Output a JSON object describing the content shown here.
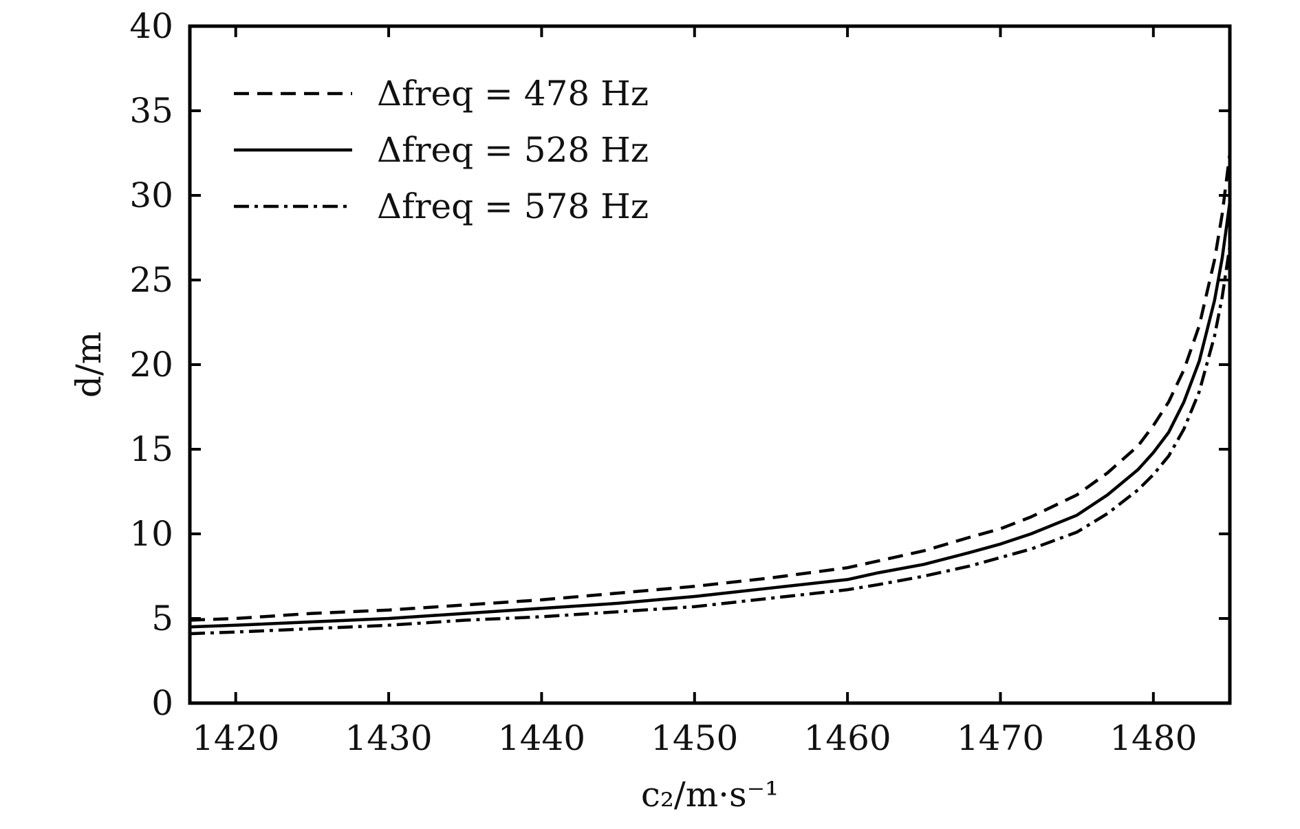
{
  "chart_data": {
    "type": "line",
    "title": "",
    "xlabel": "c₂/m·s⁻¹",
    "ylabel": "d/m",
    "xlim": [
      1417,
      1485
    ],
    "ylim": [
      0,
      40
    ],
    "xticks": [
      1420,
      1430,
      1440,
      1450,
      1460,
      1470,
      1480
    ],
    "yticks": [
      0,
      5,
      10,
      15,
      20,
      25,
      30,
      35,
      40
    ],
    "grid": false,
    "legend": "top-left",
    "series": [
      {
        "name": "Δfreq = 478 Hz",
        "dash": "dashed",
        "x": [
          1417,
          1420,
          1425,
          1430,
          1435,
          1440,
          1445,
          1450,
          1455,
          1460,
          1462,
          1465,
          1468,
          1470,
          1472,
          1475,
          1477,
          1479,
          1480,
          1481,
          1482,
          1483,
          1484,
          1484.5,
          1485
        ],
        "y": [
          4.9,
          5.0,
          5.3,
          5.5,
          5.8,
          6.1,
          6.5,
          6.9,
          7.4,
          8.0,
          8.4,
          9.0,
          9.8,
          10.3,
          11.0,
          12.3,
          13.6,
          15.2,
          16.4,
          17.8,
          19.7,
          22.3,
          26.2,
          28.9,
          32.5
        ]
      },
      {
        "name": "Δfreq = 528 Hz",
        "dash": "solid",
        "x": [
          1417,
          1420,
          1425,
          1430,
          1435,
          1440,
          1445,
          1450,
          1455,
          1460,
          1462,
          1465,
          1468,
          1470,
          1472,
          1475,
          1477,
          1479,
          1480,
          1481,
          1482,
          1483,
          1484,
          1484.5,
          1485
        ],
        "y": [
          4.5,
          4.6,
          4.8,
          5.0,
          5.3,
          5.6,
          5.9,
          6.3,
          6.8,
          7.3,
          7.7,
          8.2,
          8.9,
          9.4,
          10.0,
          11.1,
          12.3,
          13.8,
          14.8,
          16.0,
          17.8,
          20.2,
          23.8,
          26.3,
          29.6
        ]
      },
      {
        "name": "Δfreq = 578 Hz",
        "dash": "dashdot",
        "x": [
          1417,
          1420,
          1425,
          1430,
          1435,
          1440,
          1445,
          1450,
          1455,
          1460,
          1462,
          1465,
          1468,
          1470,
          1472,
          1475,
          1477,
          1479,
          1480,
          1481,
          1482,
          1483,
          1484,
          1484.5,
          1485
        ],
        "y": [
          4.1,
          4.2,
          4.4,
          4.6,
          4.9,
          5.1,
          5.4,
          5.7,
          6.2,
          6.7,
          7.0,
          7.5,
          8.1,
          8.6,
          9.1,
          10.1,
          11.2,
          12.6,
          13.5,
          14.6,
          16.2,
          18.4,
          21.7,
          24.0,
          27.0
        ]
      }
    ]
  }
}
